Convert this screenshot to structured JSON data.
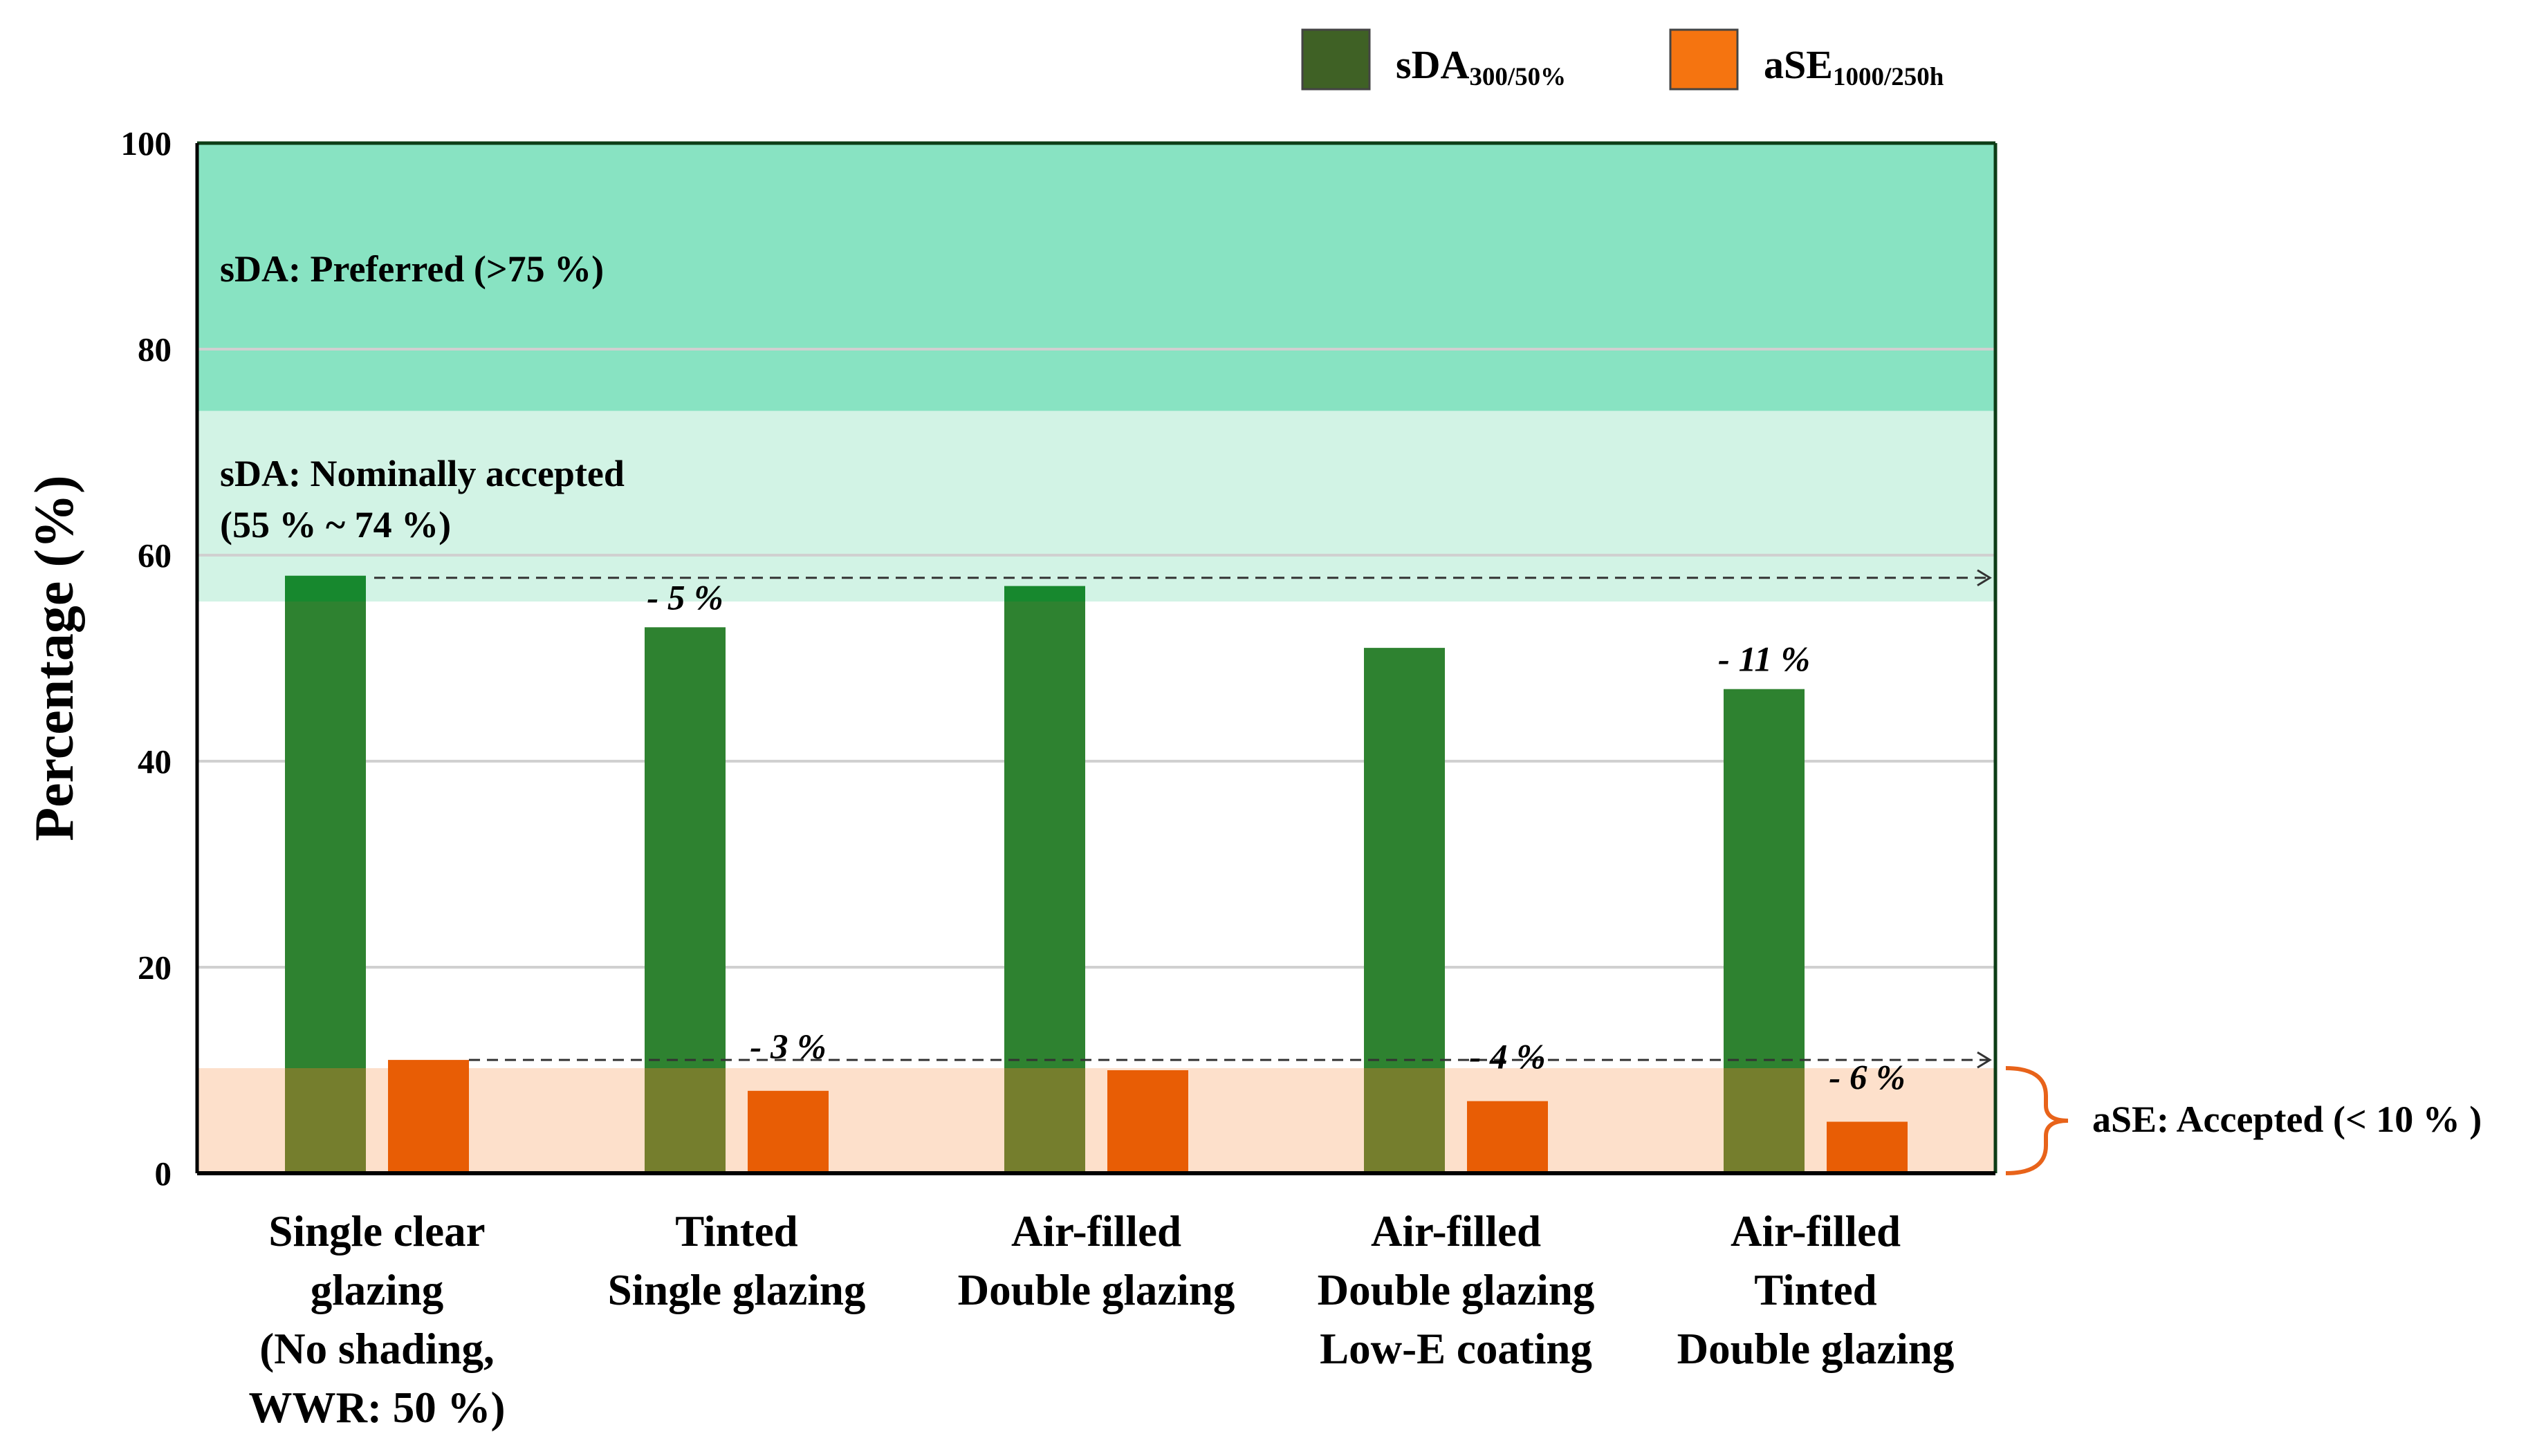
{
  "chart_data": {
    "type": "bar",
    "ylabel": "Percentage (%)",
    "ylim": [
      0,
      100
    ],
    "yticks": [
      "0",
      "20",
      "40",
      "60",
      "80",
      "100"
    ],
    "grid": true,
    "legend_position": "top-right",
    "categories": [
      [
        "Single clear",
        "glazing",
        "(No shading,",
        "WWR: 50 %)"
      ],
      [
        "Tinted",
        "Single glazing"
      ],
      [
        "Air-filled",
        "Double glazing"
      ],
      [
        "Air-filled",
        "Double glazing",
        "Low-E coating"
      ],
      [
        "Air-filled",
        "Tinted",
        "Double glazing"
      ]
    ],
    "series": [
      {
        "name": "sDA",
        "sub": "300/50%",
        "color": "#2e8230",
        "values": [
          58,
          53,
          57,
          51,
          47
        ]
      },
      {
        "name": "aSE",
        "sub": "1000/250h",
        "color": "#e85d05",
        "values": [
          11,
          8,
          10,
          7,
          5
        ]
      }
    ],
    "legend_colors": [
      "#3f6125",
      "#f57410"
    ],
    "bands": [
      {
        "from": 74,
        "to": 100,
        "color": "#88e3c2",
        "label": [
          "sDA: Preferred (>75 %)"
        ]
      },
      {
        "from": 55.5,
        "to": 74,
        "color": "#d2f3e5",
        "label": [
          "sDA: Nominally accepted",
          "(55 % ~ 74 %)"
        ]
      },
      {
        "from": 0,
        "to": 10.2,
        "color": "#fde0cb",
        "label": [
          "aSE: Accepted (< 10 % )"
        ]
      }
    ],
    "reference_lines": [
      {
        "value": 57.8,
        "from_category": 0
      },
      {
        "value": 11,
        "from_category": 0
      }
    ],
    "annotations": [
      {
        "text": "- 5 %",
        "category": 1,
        "series": 0
      },
      {
        "text": "- 11 %",
        "category": 4,
        "series": 0
      },
      {
        "text": "- 3 %",
        "category": 1,
        "series": 1
      },
      {
        "text": "- 4 %",
        "category": 3,
        "series": 1
      },
      {
        "text": "- 6 %",
        "category": 4,
        "series": 1
      }
    ]
  }
}
